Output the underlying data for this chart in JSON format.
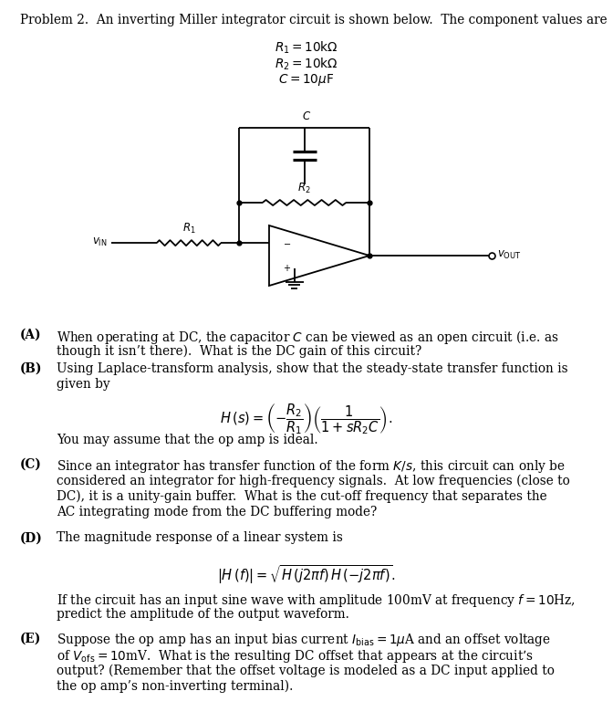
{
  "title_text": "Problem 2.  An inverting Miller integrator circuit is shown below.  The component values are",
  "cv1": "$R_1 = 10\\mathrm{k}\\Omega$",
  "cv2": "$R_2 = 10\\mathrm{k}\\Omega$",
  "cv3": "$C = 10\\mu\\mathrm{F}$",
  "qA_label": "(A)",
  "qA_text1": "When operating at DC, the capacitor $C$ can be viewed as an open circuit (i.e. as",
  "qA_text2": "though it isn’t there).  What is the DC gain of this circuit?",
  "qB_label": "(B)",
  "qB_text1": "Using Laplace-transform analysis, show that the steady-state transfer function is",
  "qB_text2": "given by",
  "qB_formula": "$H\\,(s) = \\left(-\\dfrac{R_2}{R_1}\\right)\\left(\\dfrac{1}{1+sR_2C}\\right).$",
  "qB_post": "You may assume that the op amp is ideal.",
  "qC_label": "(C)",
  "qC_text1": "Since an integrator has transfer function of the form $K/s$, this circuit can only be",
  "qC_text2": "considered an integrator for high-frequency signals.  At low frequencies (close to",
  "qC_text3": "DC), it is a unity-gain buffer.  What is the cut-off frequency that separates the",
  "qC_text4": "AC integrating mode from the DC buffering mode?",
  "qD_label": "(D)",
  "qD_text1": "The magnitude response of a linear system is",
  "qD_formula": "$|H\\,(f)| = \\sqrt{H\\,(j2\\pi f)\\,H\\,(-j2\\pi f)}.$",
  "qD_post1": "If the circuit has an input sine wave with amplitude 100mV at frequency $f = 10$Hz,",
  "qD_post2": "predict the amplitude of the output waveform.",
  "qE_label": "(E)",
  "qE_text1": "Suppose the op amp has an input bias current $I_{\\mathrm{bias}} = 1\\mu$A and an offset voltage",
  "qE_text2": "of $V_{\\mathrm{ofs}} = 10$mV.  What is the resulting DC offset that appears at the circuit’s",
  "qE_text3": "output? (Remember that the offset voltage is modeled as a DC input applied to",
  "qE_text4": "the op amp’s non-inverting terminal).",
  "bg_color": "#ffffff",
  "circuit_lw": 1.3,
  "body_fs": 9.8,
  "label_fs": 9.8,
  "formula_fs": 10.5,
  "circ_label_fs": 8.5
}
